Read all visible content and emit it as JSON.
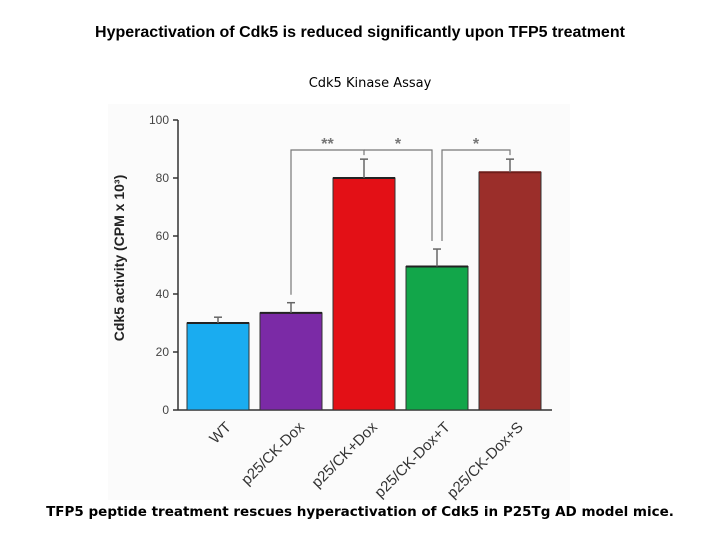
{
  "slide": {
    "title": "Hyperactivation of Cdk5 is reduced significantly upon TFP5 treatment",
    "caption": "TFP5  peptide treatment  rescues hyperactivation of Cdk5 in P25Tg AD model mice."
  },
  "chart_data": {
    "type": "bar",
    "title": "Cdk5 Kinase Assay",
    "xlabel": "",
    "ylabel": "Cdk5 activity (CPM x 10³)",
    "ylim": [
      0,
      100
    ],
    "yticks": [
      "0",
      "20",
      "40",
      "60",
      "80",
      "100"
    ],
    "ytick_values": [
      0,
      20,
      40,
      60,
      80,
      100
    ],
    "categories": [
      "WT",
      "p25/CK-Dox",
      "p25/CK+Dox",
      "p25/CK-Dox+T",
      "p25/CK-Dox+S"
    ],
    "values": [
      30,
      33.5,
      80,
      49.5,
      82
    ],
    "errors": [
      2,
      3.5,
      6.5,
      6,
      4.5
    ],
    "colors": [
      "#1aacf0",
      "#7b2aa6",
      "#e31016",
      "#12a64a",
      "#9b2e2a"
    ],
    "significance": [
      {
        "label": "**",
        "from": 1,
        "to": 2
      },
      {
        "label": "*",
        "from": 2,
        "to": 3
      },
      {
        "label": "*",
        "from": 3,
        "to": 4
      }
    ]
  }
}
